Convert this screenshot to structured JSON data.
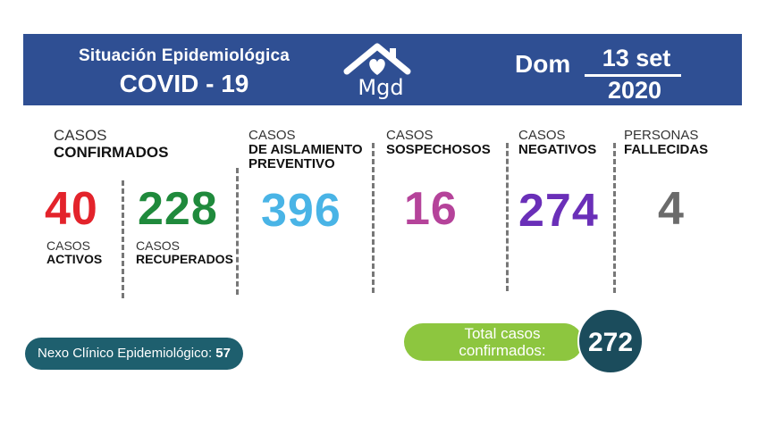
{
  "header": {
    "title_line1": "Situación Epidemiológica",
    "title_line2": "COVID - 19",
    "logo_text": "Mgd",
    "logo_icon": "house-heart-icon",
    "date_prefix": "Dom",
    "date_day": "13 set",
    "date_year": "2020"
  },
  "confirmados": {
    "label_line1": "CASOS",
    "label_line2": "CONFIRMADOS",
    "activos": {
      "value": "40",
      "line1": "CASOS",
      "line2": "ACTIVOS",
      "color": "#e3232b"
    },
    "recuperados": {
      "value": "228",
      "line1": "CASOS",
      "line2": "RECUPERADOS",
      "color": "#1f8a3c"
    }
  },
  "aislamiento": {
    "line1": "CASOS",
    "line2": "DE AISLAMIENTO",
    "line3": "PREVENTIVO",
    "value": "396",
    "color": "#49b4e6"
  },
  "sospechosos": {
    "line1": "CASOS",
    "line2": "SOSPECHOSOS",
    "value": "16",
    "color": "#b5439a"
  },
  "negativos": {
    "line1": "CASOS",
    "line2": "NEGATIVOS",
    "value": "274",
    "color": "#6a2fb8"
  },
  "fallecidas": {
    "line1": "PERSONAS",
    "line2": "FALLECIDAS",
    "value": "4",
    "color": "#6b6b6b"
  },
  "nexo": {
    "label": "Nexo Clínico Epidemiológico:",
    "value": "57"
  },
  "total": {
    "line1": "Total casos",
    "line2": "confirmados:",
    "value": "272"
  },
  "colors": {
    "header_bg": "#2f4f93",
    "nexo_bg": "#1e5f6e",
    "total_pill": "#8dc63f",
    "total_circle": "#1b4c5c"
  }
}
